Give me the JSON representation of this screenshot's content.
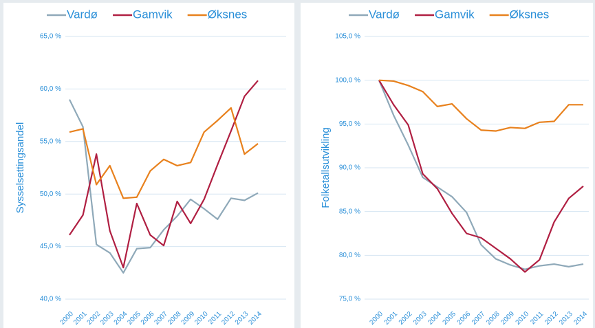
{
  "chart_data": [
    {
      "type": "line",
      "y_label": "Sysselsettingsandel",
      "categories": [
        "2000",
        "2001",
        "2002",
        "2003",
        "2004",
        "2005",
        "2006",
        "2007",
        "2008",
        "2009",
        "2010",
        "2011",
        "2012",
        "2013",
        "2014"
      ],
      "series": [
        {
          "name": "Vardø",
          "color": "#8fa9b9",
          "values": [
            59.0,
            56.4,
            45.2,
            44.4,
            42.5,
            44.8,
            44.9,
            46.6,
            47.9,
            49.5,
            48.6,
            47.6,
            49.6,
            49.4,
            50.1
          ]
        },
        {
          "name": "Gamvik",
          "color": "#b01f42",
          "values": [
            46.1,
            48.0,
            53.8,
            46.5,
            43.0,
            49.1,
            46.1,
            45.1,
            49.3,
            47.2,
            49.5,
            52.8,
            56.0,
            59.3,
            60.8
          ]
        },
        {
          "name": "Øksnes",
          "color": "#e8811d",
          "values": [
            55.9,
            56.2,
            50.9,
            52.7,
            49.6,
            49.7,
            52.2,
            53.3,
            52.7,
            53.0,
            55.9,
            57.0,
            58.2,
            53.8,
            54.8
          ]
        }
      ],
      "ylim": [
        40,
        65
      ],
      "yticks": [
        {
          "value": 40,
          "label": "40,0 %"
        },
        {
          "value": 45,
          "label": "45,0 %"
        },
        {
          "value": 50,
          "label": "50,0 %"
        },
        {
          "value": 55,
          "label": "55,0 %"
        },
        {
          "value": 60,
          "label": "60,0 %"
        },
        {
          "value": 65,
          "label": "65,0 %"
        }
      ],
      "grid": true,
      "legend": "top"
    },
    {
      "type": "line",
      "y_label": "Folketallsutvikling",
      "categories": [
        "2000",
        "2001",
        "2002",
        "2003",
        "2004",
        "2005",
        "2006",
        "2007",
        "2008",
        "2009",
        "2010",
        "2011",
        "2012",
        "2013",
        "2014"
      ],
      "series": [
        {
          "name": "Vardø",
          "color": "#8fa9b9",
          "values": [
            100,
            96.0,
            92.6,
            88.9,
            87.8,
            86.7,
            84.9,
            81.2,
            79.6,
            78.9,
            78.4,
            78.8,
            79.0,
            78.7,
            79.0
          ]
        },
        {
          "name": "Gamvik",
          "color": "#b01f42",
          "values": [
            100,
            97.2,
            94.9,
            89.3,
            87.6,
            84.8,
            82.5,
            82.0,
            80.8,
            79.6,
            78.1,
            79.5,
            83.8,
            86.5,
            87.9
          ]
        },
        {
          "name": "Øksnes",
          "color": "#e8811d",
          "values": [
            100,
            99.9,
            99.4,
            98.7,
            97.0,
            97.3,
            95.6,
            94.3,
            94.2,
            94.6,
            94.5,
            95.2,
            95.3,
            97.2,
            97.2
          ]
        }
      ],
      "ylim": [
        75,
        105
      ],
      "yticks": [
        {
          "value": 75,
          "label": "75,0 %"
        },
        {
          "value": 80,
          "label": "80,0 %"
        },
        {
          "value": 85,
          "label": "85,0 %"
        },
        {
          "value": 90,
          "label": "90,0 %"
        },
        {
          "value": 95,
          "label": "95,0 %"
        },
        {
          "value": 100,
          "label": "100,0 %"
        },
        {
          "value": 105,
          "label": "105,0 %"
        }
      ],
      "grid": true,
      "legend": "top"
    }
  ]
}
